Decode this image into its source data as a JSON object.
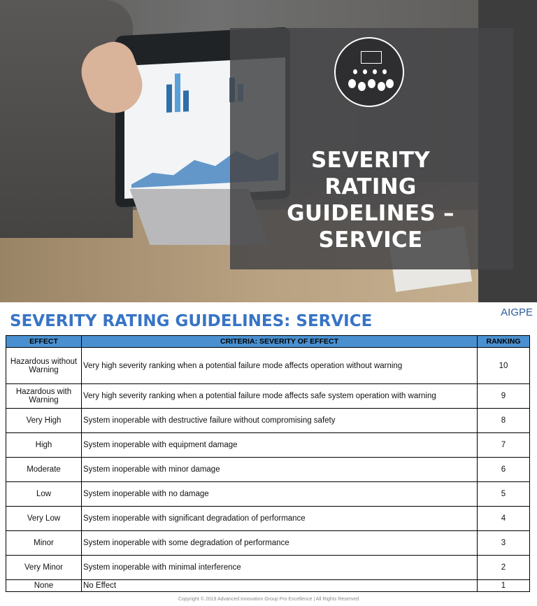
{
  "slide": {
    "title": "SEVERITY RATING GUIDELINES – SERVICE",
    "logo_icon": "people-process-icon"
  },
  "brand": "AIGPE",
  "heading": "SEVERITY RATING GUIDELINES: SERVICE",
  "table": {
    "headers": [
      "EFFECT",
      "CRITERIA: SEVERITY OF EFFECT",
      "RANKING"
    ],
    "header_color": "#4a90d0",
    "rows": [
      {
        "effect": "Hazardous without Warning",
        "criteria": "Very high severity ranking when a potential failure mode affects operation without warning",
        "ranking": "10"
      },
      {
        "effect": "Hazardous with Warning",
        "criteria": "Very high severity ranking when a potential failure mode affects safe system operation with warning",
        "ranking": "9"
      },
      {
        "effect": "Very High",
        "criteria": "System inoperable with destructive failure without compromising safety",
        "ranking": "8"
      },
      {
        "effect": "High",
        "criteria": "System inoperable with equipment damage",
        "ranking": "7"
      },
      {
        "effect": "Moderate",
        "criteria": "System inoperable with minor damage",
        "ranking": "6"
      },
      {
        "effect": "Low",
        "criteria": "System inoperable with no damage",
        "ranking": "5"
      },
      {
        "effect": "Very Low",
        "criteria": "System inoperable with significant degradation of performance",
        "ranking": "4"
      },
      {
        "effect": "Minor",
        "criteria": "System inoperable with some degradation of performance",
        "ranking": "3"
      },
      {
        "effect": "Very Minor",
        "criteria": "System inoperable with minimal interference",
        "ranking": "2"
      },
      {
        "effect": "None",
        "criteria": "No Effect",
        "ranking": "1"
      }
    ]
  },
  "footer": "Copyright © 2019 Advanced Innovation Group Pro Excellence | All Rights Reserved"
}
